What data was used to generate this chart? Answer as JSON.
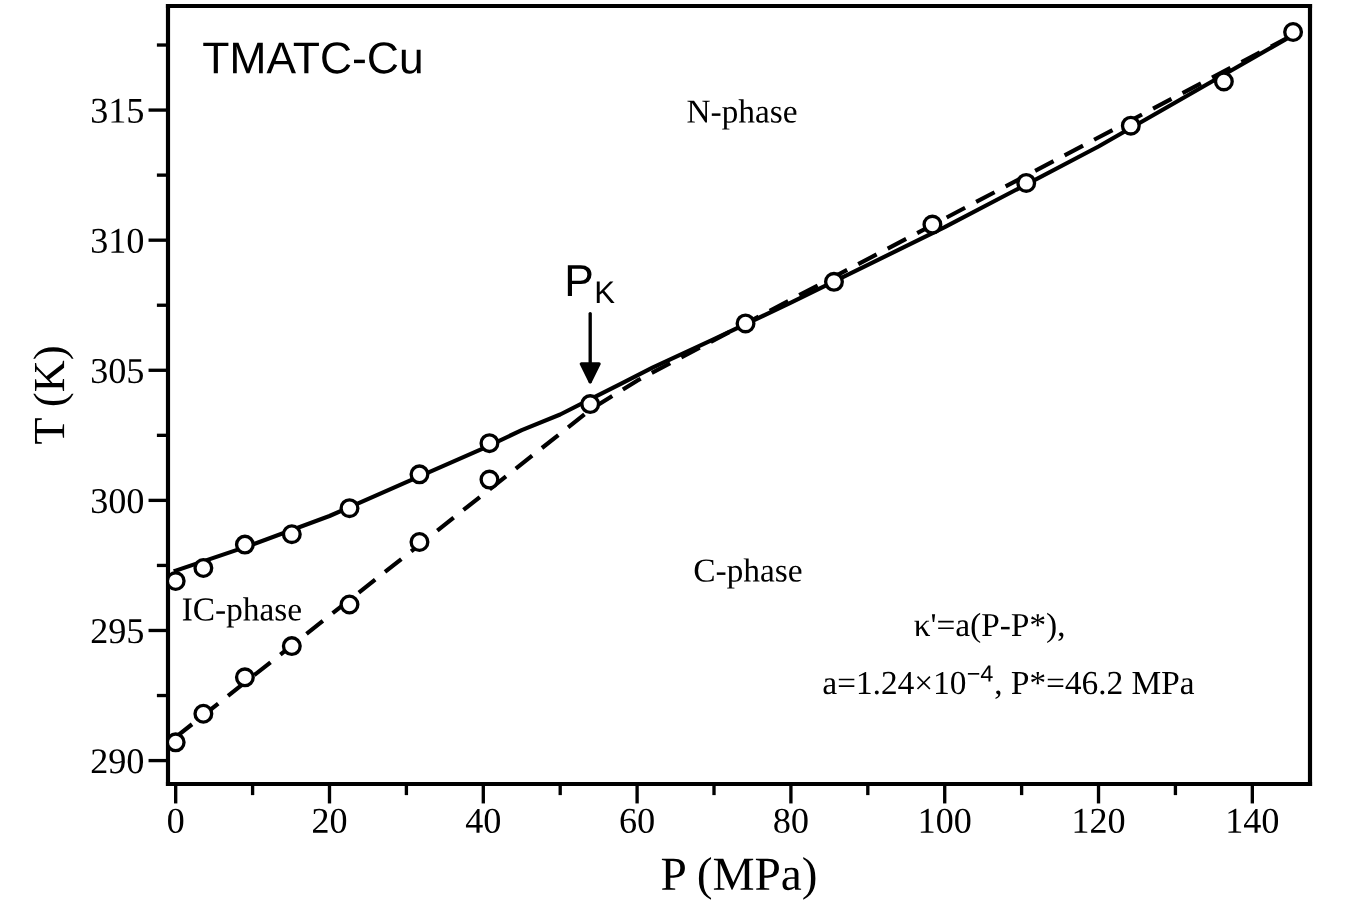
{
  "chart_data": {
    "type": "scatter",
    "xlabel": "P (MPa)",
    "ylabel": "T (K)",
    "xlim": [
      -1,
      147.5
    ],
    "ylim": [
      289.1,
      319
    ],
    "xticks": [
      0,
      {
        "value": 10,
        "label": null
      },
      20,
      {
        "value": 30,
        "label": null
      },
      40,
      {
        "value": 50,
        "label": null
      },
      60,
      {
        "value": 70,
        "label": null
      },
      80,
      {
        "value": 90,
        "label": null
      },
      100,
      {
        "value": 110,
        "label": null
      },
      120,
      {
        "value": 130,
        "label": null
      },
      140
    ],
    "yticks": [
      290,
      {
        "value": 292.5,
        "label": null
      },
      295,
      {
        "value": 297.5,
        "label": null
      },
      300,
      {
        "value": 302.5,
        "label": null
      },
      305,
      {
        "value": 307.5,
        "label": null
      },
      310,
      {
        "value": 312.5,
        "label": null
      },
      315,
      {
        "value": 317.5,
        "label": null
      }
    ],
    "grid": false,
    "legend": false,
    "series": [
      {
        "type": "line",
        "color": "#000000",
        "line_style": "solid",
        "marker": "none",
        "x": [
          0,
          10,
          20,
          30,
          40,
          45,
          50,
          54,
          58,
          62,
          70,
          80,
          100,
          120,
          146
        ],
        "values": [
          297.3,
          298.3,
          299.4,
          300.7,
          302.0,
          302.7,
          303.3,
          303.9,
          304.5,
          305.1,
          306.2,
          307.6,
          310.5,
          313.6,
          318.0
        ]
      },
      {
        "type": "line",
        "color": "#000000",
        "line_style": "dashed",
        "marker": "none",
        "x": [
          0,
          54,
          60,
          146
        ],
        "values": [
          290.9,
          303.5,
          304.6,
          318.0
        ]
      },
      {
        "color": "#000000",
        "marker": "circle",
        "x": [
          0,
          3.6,
          9.0,
          15.1,
          22.6,
          31.7,
          40.8,
          53.9,
          74.1,
          85.6,
          98.4,
          110.6,
          124.2,
          136.3,
          145.3
        ],
        "values": [
          296.9,
          297.4,
          298.3,
          298.7,
          299.7,
          301.0,
          302.2,
          303.7,
          306.8,
          308.4,
          310.6,
          312.2,
          314.4,
          316.1,
          318.0
        ]
      },
      {
        "color": "#000000",
        "marker": "circle",
        "x": [
          0,
          3.6,
          9.0,
          15.1,
          22.6,
          31.7,
          40.8
        ],
        "values": [
          290.7,
          291.8,
          293.2,
          294.4,
          296.0,
          298.4,
          300.8
        ]
      }
    ],
    "annotations": [
      "TMATC-Cu",
      "N-phase",
      "C-phase",
      "IC-phase",
      "κ'=a(P-P*),",
      "a=1.24×10$^{−4}$, P*=46.2 MPa",
      {
        "text": "P$_{K}$",
        "x": 53.9,
        "y": 304.1
      }
    ]
  }
}
